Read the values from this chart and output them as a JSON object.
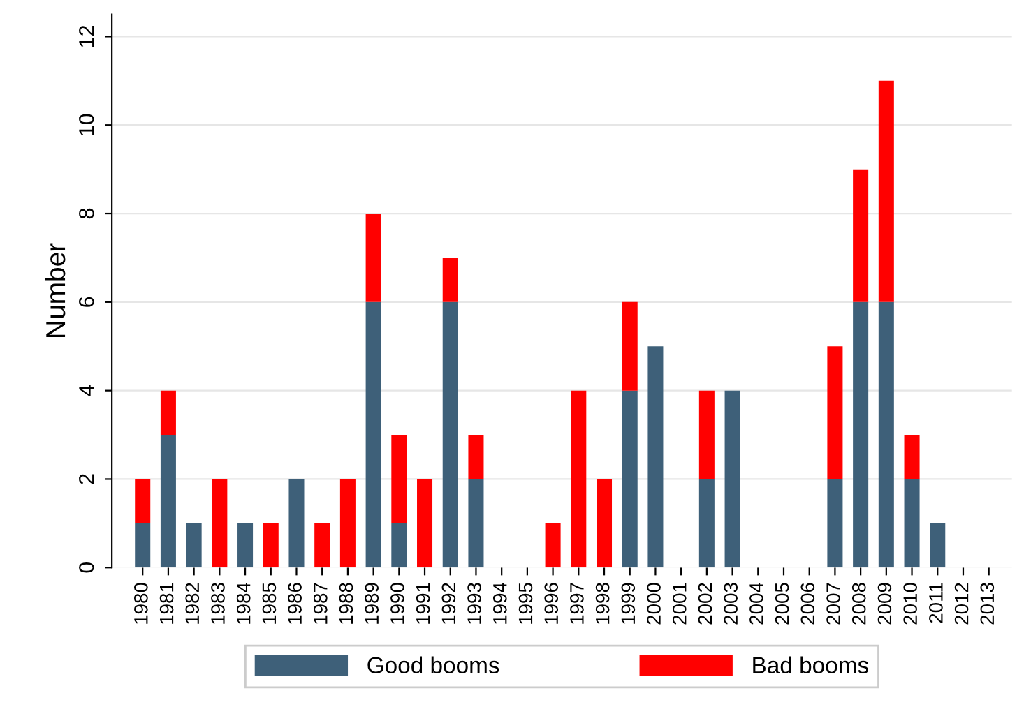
{
  "chart_data": {
    "type": "bar",
    "stacked": true,
    "ylabel": "Number",
    "categories": [
      "1980",
      "1981",
      "1982",
      "1983",
      "1984",
      "1985",
      "1986",
      "1987",
      "1988",
      "1989",
      "1990",
      "1991",
      "1992",
      "1993",
      "1994",
      "1995",
      "1996",
      "1997",
      "1998",
      "1999",
      "2000",
      "2001",
      "2002",
      "2003",
      "2004",
      "2005",
      "2006",
      "2007",
      "2008",
      "2009",
      "2010",
      "2011",
      "2012",
      "2013"
    ],
    "series": [
      {
        "name": "Good booms",
        "color": "#3e6079",
        "values": [
          1,
          3,
          1,
          0,
          1,
          0,
          2,
          0,
          0,
          6,
          1,
          0,
          6,
          2,
          0,
          0,
          0,
          0,
          0,
          4,
          5,
          0,
          2,
          4,
          0,
          0,
          0,
          2,
          6,
          6,
          2,
          1,
          0,
          0
        ]
      },
      {
        "name": "Bad booms",
        "color": "#ff0000",
        "values": [
          1,
          1,
          0,
          2,
          0,
          1,
          0,
          1,
          2,
          2,
          2,
          2,
          1,
          1,
          0,
          0,
          1,
          4,
          2,
          2,
          0,
          0,
          2,
          0,
          0,
          0,
          0,
          3,
          3,
          5,
          1,
          0,
          0,
          0
        ]
      }
    ],
    "ylim": [
      0,
      12.5
    ],
    "yticks": [
      0,
      2,
      4,
      6,
      8,
      10,
      12
    ],
    "grid": "y",
    "legend": "bottom"
  }
}
